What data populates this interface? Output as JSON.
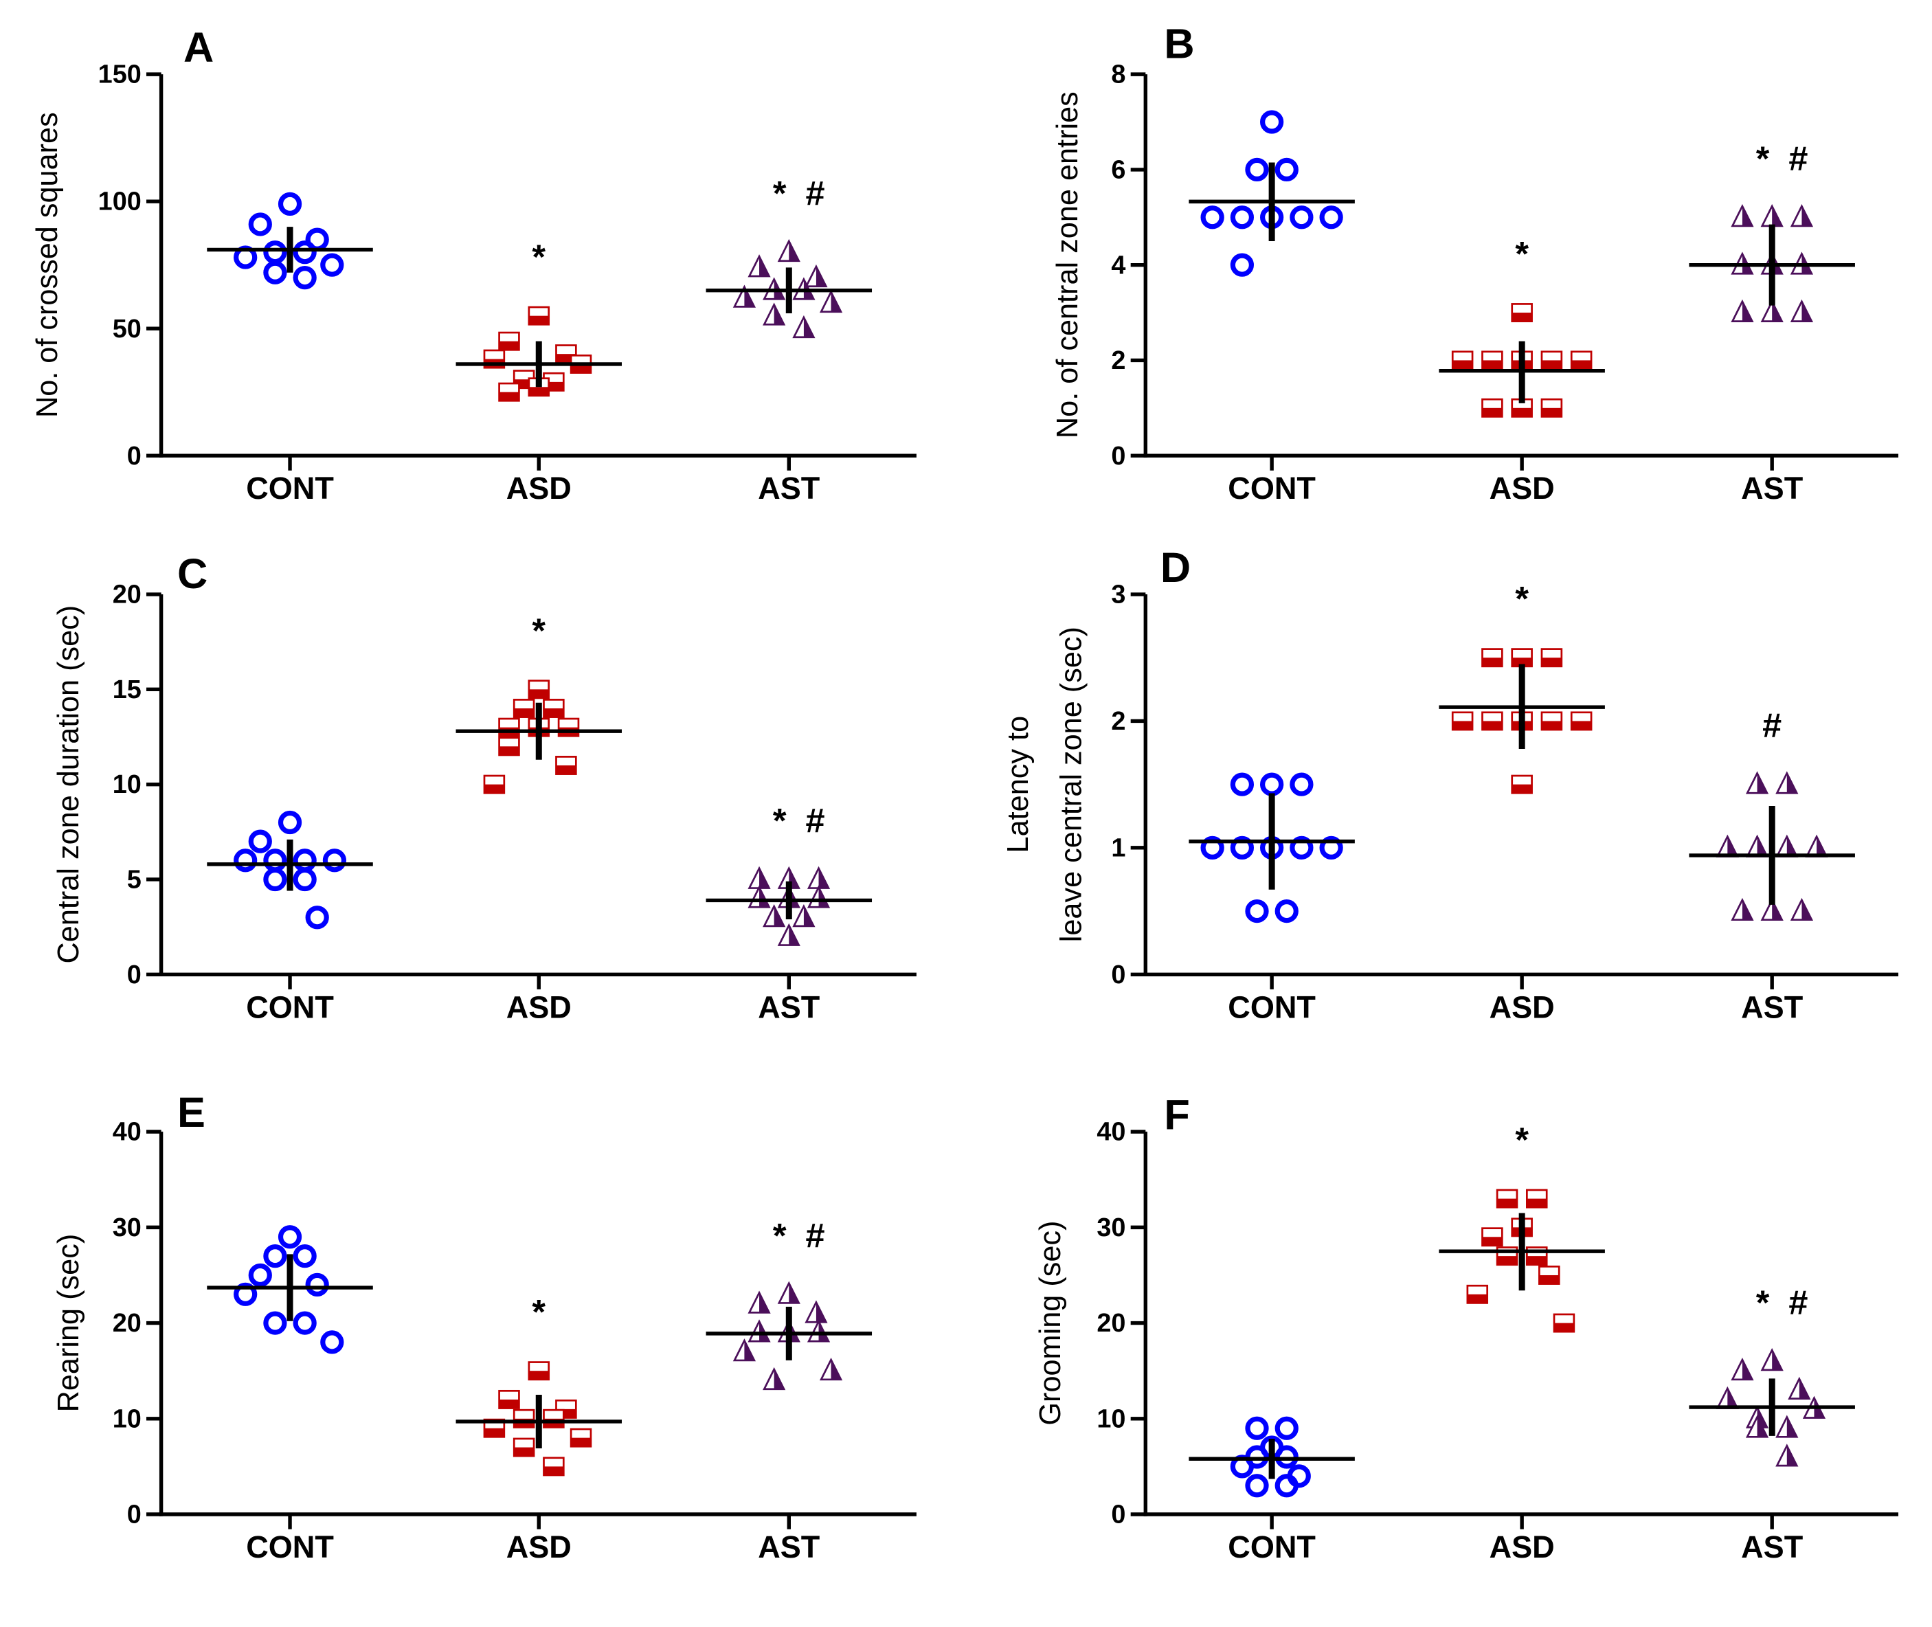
{
  "colors": {
    "CONT": "#0000ff",
    "ASD": "#c00000",
    "AST": "#4b0f5a",
    "axis": "#000000"
  },
  "chart_data": [
    {
      "type": "scatter",
      "panel": "A",
      "ylabel": [
        "No. of crossed squares"
      ],
      "ylim": [
        0,
        150
      ],
      "yticks": [
        0,
        50,
        100,
        150
      ],
      "categories": [
        "CONT",
        "ASD",
        "AST"
      ],
      "groups": [
        {
          "name": "CONT",
          "marker": "circle",
          "values": [
            99,
            91,
            85,
            80,
            80,
            78,
            75,
            72,
            70
          ],
          "mean": 81,
          "err": [
            72,
            90
          ],
          "annotation": ""
        },
        {
          "name": "ASD",
          "marker": "square",
          "values": [
            55,
            45,
            40,
            38,
            36,
            30,
            29,
            27,
            25
          ],
          "mean": 36,
          "err": [
            27,
            45
          ],
          "annotation": "*"
        },
        {
          "name": "AST",
          "marker": "triangle",
          "values": [
            80,
            74,
            70,
            65,
            65,
            62,
            60,
            55,
            50
          ],
          "mean": 65,
          "err": [
            56,
            74
          ],
          "annotation": "* #"
        }
      ]
    },
    {
      "type": "scatter",
      "panel": "B",
      "ylabel": [
        "No. of central zone entries"
      ],
      "ylim": [
        0,
        8
      ],
      "yticks": [
        0,
        2,
        4,
        6,
        8
      ],
      "categories": [
        "CONT",
        "ASD",
        "AST"
      ],
      "groups": [
        {
          "name": "CONT",
          "marker": "circle",
          "values": [
            7,
            6,
            6,
            5,
            5,
            5,
            5,
            5,
            4
          ],
          "mean": 5.33,
          "err": [
            4.5,
            6.15
          ],
          "annotation": ""
        },
        {
          "name": "ASD",
          "marker": "square",
          "values": [
            3,
            2,
            2,
            2,
            2,
            2,
            1,
            1,
            1
          ],
          "mean": 1.78,
          "err": [
            1.1,
            2.4
          ],
          "annotation": "*"
        },
        {
          "name": "AST",
          "marker": "triangle",
          "values": [
            5,
            5,
            5,
            4,
            4,
            4,
            3,
            3,
            3
          ],
          "mean": 4,
          "err": [
            3.15,
            4.85
          ],
          "annotation": "* #"
        }
      ]
    },
    {
      "type": "scatter",
      "panel": "C",
      "ylabel": [
        "Central zone duration (sec)"
      ],
      "ylim": [
        0,
        20
      ],
      "yticks": [
        0,
        5,
        10,
        15,
        20
      ],
      "categories": [
        "CONT",
        "ASD",
        "AST"
      ],
      "groups": [
        {
          "name": "CONT",
          "marker": "circle",
          "values": [
            8,
            7,
            6,
            6,
            6,
            6,
            5,
            5,
            3
          ],
          "mean": 5.8,
          "err": [
            4.4,
            7.1
          ],
          "annotation": ""
        },
        {
          "name": "ASD",
          "marker": "square",
          "values": [
            15,
            14,
            14,
            13,
            13,
            13,
            12,
            11,
            10
          ],
          "mean": 12.8,
          "err": [
            11.3,
            14.3
          ],
          "annotation": "*"
        },
        {
          "name": "AST",
          "marker": "triangle",
          "values": [
            5,
            5,
            5,
            4,
            4,
            3,
            3,
            2,
            4
          ],
          "mean": 3.9,
          "err": [
            2.9,
            4.9
          ],
          "annotation": "* #"
        }
      ]
    },
    {
      "type": "scatter",
      "panel": "D",
      "ylabel": [
        "Latency to",
        "leave central zone (sec)"
      ],
      "ylim": [
        0,
        3
      ],
      "yticks": [
        0,
        1,
        2,
        3
      ],
      "categories": [
        "CONT",
        "ASD",
        "AST"
      ],
      "groups": [
        {
          "name": "CONT",
          "marker": "circle",
          "values": [
            1.5,
            1.5,
            1.5,
            1,
            1,
            1,
            1,
            1,
            0.5,
            0.5
          ],
          "mean": 1.05,
          "err": [
            0.67,
            1.43
          ],
          "annotation": ""
        },
        {
          "name": "ASD",
          "marker": "square",
          "values": [
            2.5,
            2.5,
            2.5,
            2,
            2,
            2,
            2,
            2,
            1.5
          ],
          "mean": 2.11,
          "err": [
            1.78,
            2.45
          ],
          "annotation": "*"
        },
        {
          "name": "AST",
          "marker": "triangle",
          "values": [
            1.5,
            1.5,
            1,
            1,
            1,
            1,
            0.5,
            0.5,
            0.5
          ],
          "mean": 0.94,
          "err": [
            0.55,
            1.33
          ],
          "annotation": "#"
        }
      ]
    },
    {
      "type": "scatter",
      "panel": "E",
      "ylabel": [
        "Rearing (sec)"
      ],
      "ylim": [
        0,
        40
      ],
      "yticks": [
        0,
        10,
        20,
        30,
        40
      ],
      "categories": [
        "CONT",
        "ASD",
        "AST"
      ],
      "groups": [
        {
          "name": "CONT",
          "marker": "circle",
          "values": [
            29,
            27,
            27,
            25,
            24,
            23,
            20,
            20,
            18
          ],
          "mean": 23.7,
          "err": [
            20.2,
            27.2
          ],
          "annotation": ""
        },
        {
          "name": "ASD",
          "marker": "square",
          "values": [
            15,
            12,
            11,
            10,
            10,
            9,
            8,
            7,
            5
          ],
          "mean": 9.7,
          "err": [
            6.9,
            12.5
          ],
          "annotation": "*"
        },
        {
          "name": "AST",
          "marker": "triangle",
          "values": [
            23,
            22,
            21,
            19,
            19,
            17,
            15,
            14,
            19
          ],
          "mean": 18.9,
          "err": [
            16.1,
            21.7
          ],
          "annotation": "* #"
        }
      ]
    },
    {
      "type": "scatter",
      "panel": "F",
      "ylabel": [
        "Grooming (sec)"
      ],
      "ylim": [
        0,
        40
      ],
      "yticks": [
        0,
        10,
        20,
        30,
        40
      ],
      "categories": [
        "CONT",
        "ASD",
        "AST"
      ],
      "groups": [
        {
          "name": "CONT",
          "marker": "circle",
          "values": [
            9,
            9,
            7,
            6,
            6,
            5,
            4,
            3,
            3
          ],
          "mean": 5.8,
          "err": [
            3.7,
            7.9
          ],
          "annotation": ""
        },
        {
          "name": "ASD",
          "marker": "square",
          "values": [
            33,
            33,
            30,
            29,
            27,
            27,
            25,
            23,
            20
          ],
          "mean": 27.5,
          "err": [
            23.4,
            31.5
          ],
          "annotation": "*"
        },
        {
          "name": "AST",
          "marker": "triangle",
          "values": [
            16,
            15,
            13,
            12,
            11,
            10,
            9,
            9,
            6
          ],
          "mean": 11.2,
          "err": [
            8.2,
            14.2
          ],
          "annotation": "* #"
        }
      ]
    }
  ]
}
